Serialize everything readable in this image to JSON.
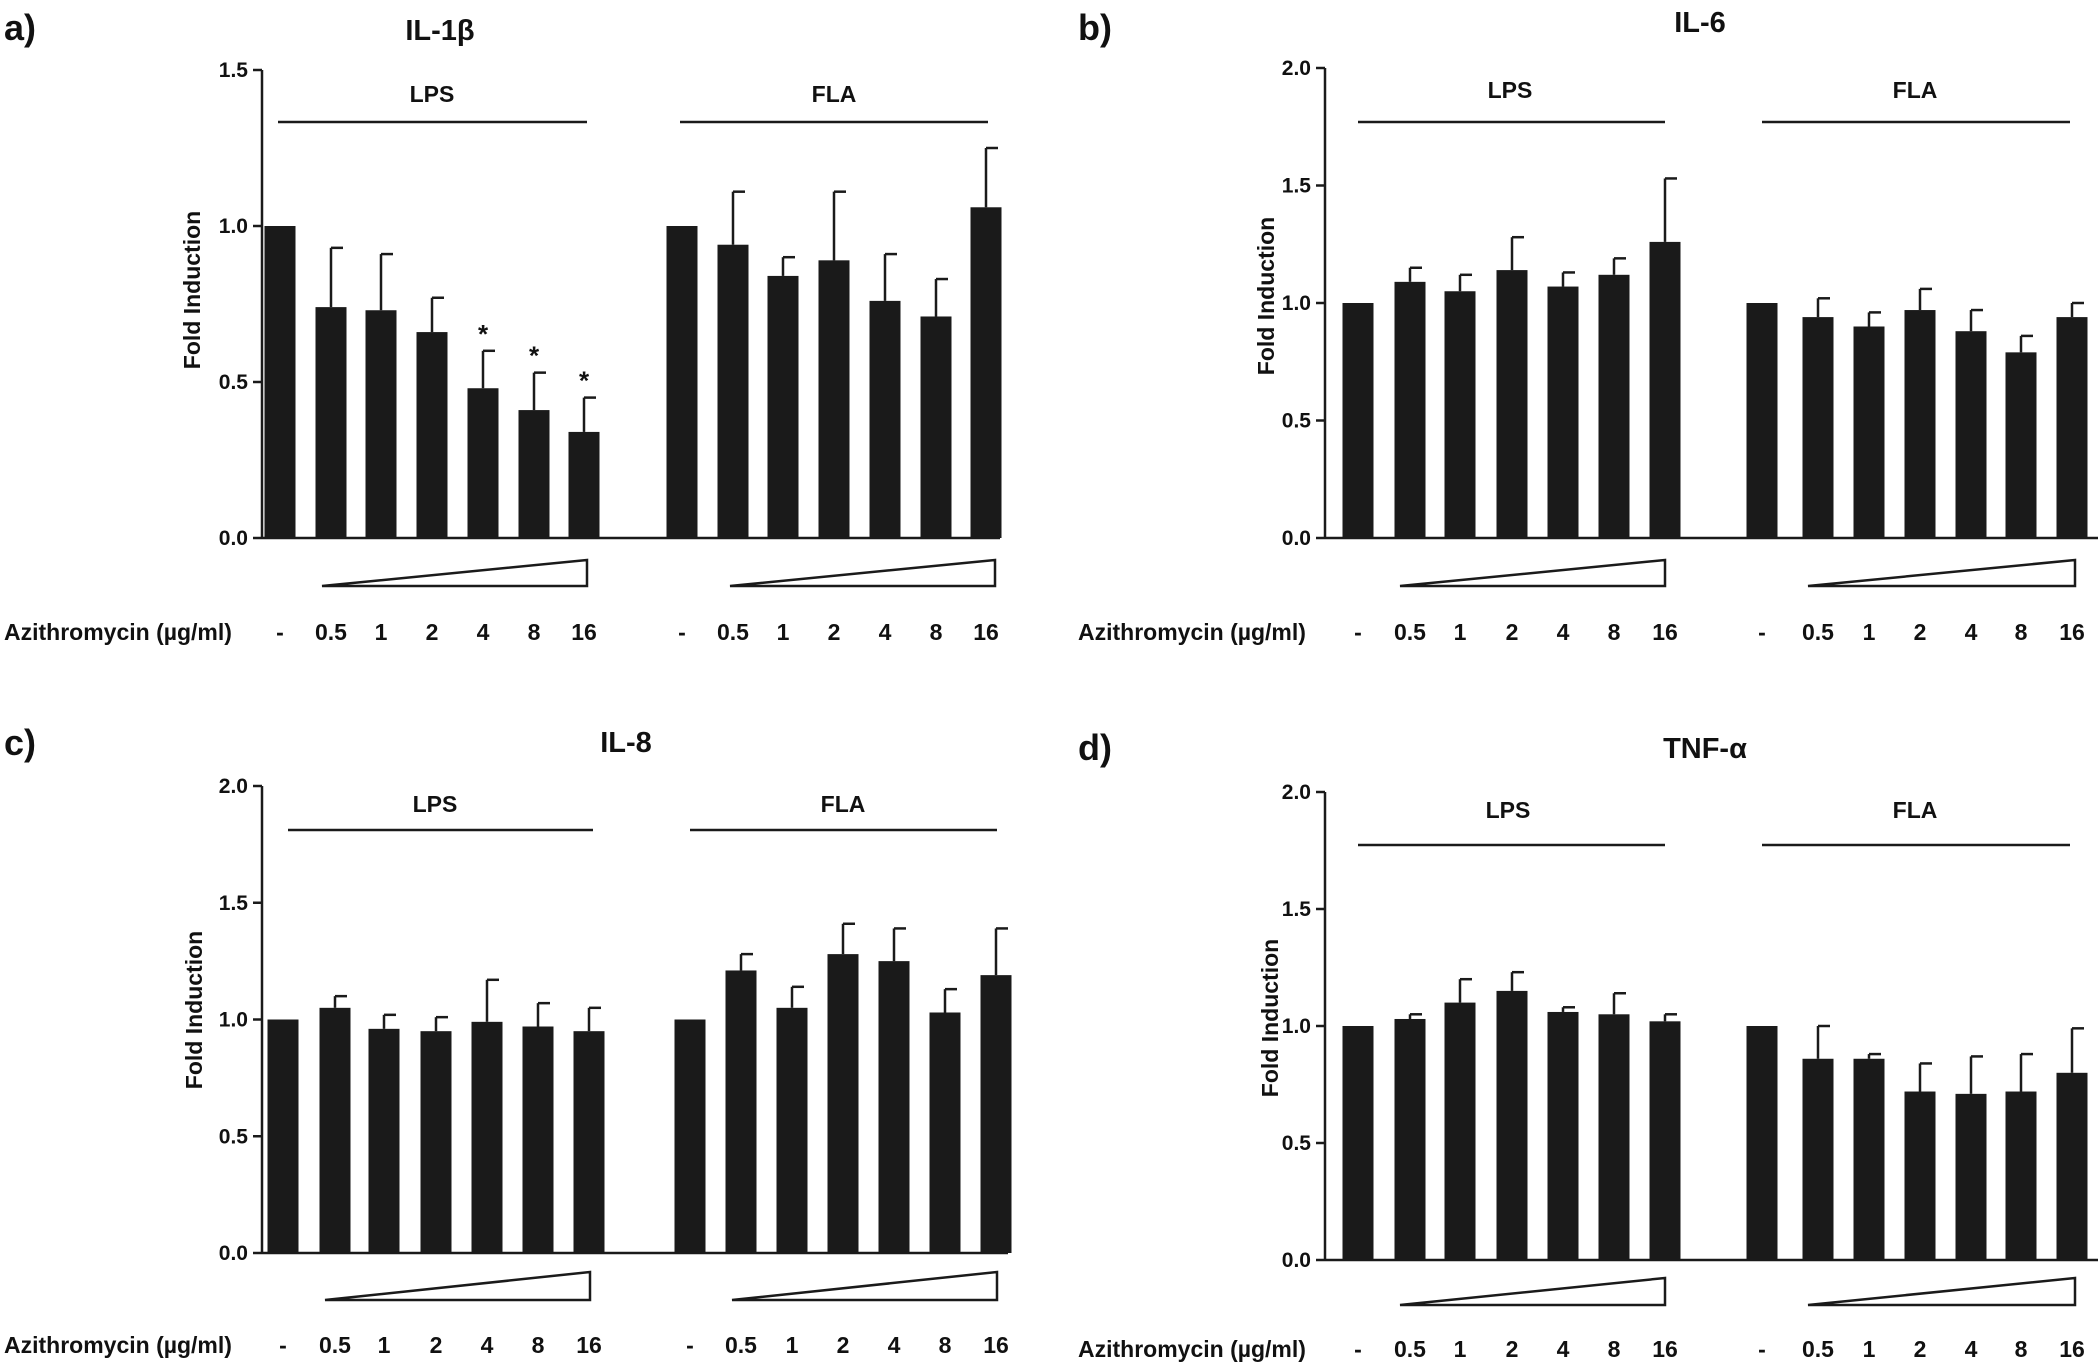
{
  "colors": {
    "bar": "#1a1a1a",
    "axis": "#1a1a1a",
    "background": "#ffffff"
  },
  "x_axis_caption": "Azithromycin (µg/ml)",
  "chart_data": [
    {
      "type": "bar",
      "panel": "a)",
      "title": "IL-1β",
      "ylabel": "Fold Induction",
      "ylim": [
        0,
        1.5
      ],
      "yticks": [
        "0.0",
        "0.5",
        "1.0",
        "1.5"
      ],
      "yticks_num": [
        0,
        0.5,
        1.0,
        1.5
      ],
      "categories": [
        "-",
        "0.5",
        "1",
        "2",
        "4",
        "8",
        "16"
      ],
      "groups": [
        {
          "name": "LPS",
          "values": [
            1.0,
            0.74,
            0.73,
            0.66,
            0.48,
            0.41,
            0.34
          ],
          "errors": [
            0,
            0.19,
            0.18,
            0.11,
            0.12,
            0.12,
            0.11
          ],
          "significant": [
            false,
            false,
            false,
            false,
            true,
            true,
            true
          ]
        },
        {
          "name": "FLA",
          "values": [
            1.0,
            0.94,
            0.84,
            0.89,
            0.76,
            0.71,
            1.06
          ],
          "errors": [
            0,
            0.17,
            0.06,
            0.22,
            0.15,
            0.12,
            0.19
          ],
          "significant": [
            false,
            false,
            false,
            false,
            false,
            false,
            false
          ]
        }
      ],
      "significance_marker": "*"
    },
    {
      "type": "bar",
      "panel": "b)",
      "title": "IL-6",
      "ylabel": "Fold Induction",
      "ylim": [
        0,
        2.0
      ],
      "yticks": [
        "0.0",
        "0.5",
        "1.0",
        "1.5",
        "2.0"
      ],
      "yticks_num": [
        0,
        0.5,
        1.0,
        1.5,
        2.0
      ],
      "categories": [
        "-",
        "0.5",
        "1",
        "2",
        "4",
        "8",
        "16"
      ],
      "groups": [
        {
          "name": "LPS",
          "values": [
            1.0,
            1.09,
            1.05,
            1.14,
            1.07,
            1.12,
            1.26
          ],
          "errors": [
            0,
            0.06,
            0.07,
            0.14,
            0.06,
            0.07,
            0.27
          ],
          "significant": [
            false,
            false,
            false,
            false,
            false,
            false,
            false
          ]
        },
        {
          "name": "FLA",
          "values": [
            1.0,
            0.94,
            0.9,
            0.97,
            0.88,
            0.79,
            0.94
          ],
          "errors": [
            0,
            0.08,
            0.06,
            0.09,
            0.09,
            0.07,
            0.06
          ],
          "significant": [
            false,
            false,
            false,
            false,
            false,
            false,
            false
          ]
        }
      ],
      "significance_marker": ""
    },
    {
      "type": "bar",
      "panel": "c)",
      "title": "IL-8",
      "ylabel": "Fold Induction",
      "ylim": [
        0,
        2.0
      ],
      "yticks": [
        "0.0",
        "0.5",
        "1.0",
        "1.5",
        "2.0"
      ],
      "yticks_num": [
        0,
        0.5,
        1.0,
        1.5,
        2.0
      ],
      "categories": [
        "-",
        "0.5",
        "1",
        "2",
        "4",
        "8",
        "16"
      ],
      "groups": [
        {
          "name": "LPS",
          "values": [
            1.0,
            1.05,
            0.96,
            0.95,
            0.99,
            0.97,
            0.95
          ],
          "errors": [
            0,
            0.05,
            0.06,
            0.06,
            0.18,
            0.1,
            0.1
          ],
          "significant": [
            false,
            false,
            false,
            false,
            false,
            false,
            false
          ]
        },
        {
          "name": "FLA",
          "values": [
            1.0,
            1.21,
            1.05,
            1.28,
            1.25,
            1.03,
            1.19
          ],
          "errors": [
            0,
            0.07,
            0.09,
            0.13,
            0.14,
            0.1,
            0.2
          ],
          "significant": [
            false,
            false,
            false,
            false,
            false,
            false,
            false
          ]
        }
      ],
      "significance_marker": ""
    },
    {
      "type": "bar",
      "panel": "d)",
      "title": "TNF-α",
      "ylabel": "Fold Induction",
      "ylim": [
        0,
        2.0
      ],
      "yticks": [
        "0.0",
        "0.5",
        "1.0",
        "1.5",
        "2.0"
      ],
      "yticks_num": [
        0,
        0.5,
        1.0,
        1.5,
        2.0
      ],
      "categories": [
        "-",
        "0.5",
        "1",
        "2",
        "4",
        "8",
        "16"
      ],
      "groups": [
        {
          "name": "LPS",
          "values": [
            1.0,
            1.03,
            1.1,
            1.15,
            1.06,
            1.05,
            1.02
          ],
          "errors": [
            0,
            0.02,
            0.1,
            0.08,
            0.02,
            0.09,
            0.03
          ],
          "significant": [
            false,
            false,
            false,
            false,
            false,
            false,
            false
          ]
        },
        {
          "name": "FLA",
          "values": [
            1.0,
            0.86,
            0.86,
            0.72,
            0.71,
            0.72,
            0.8
          ],
          "errors": [
            0,
            0.14,
            0.02,
            0.12,
            0.16,
            0.16,
            0.19
          ],
          "significant": [
            false,
            false,
            false,
            false,
            false,
            false,
            false
          ]
        }
      ],
      "significance_marker": ""
    }
  ]
}
